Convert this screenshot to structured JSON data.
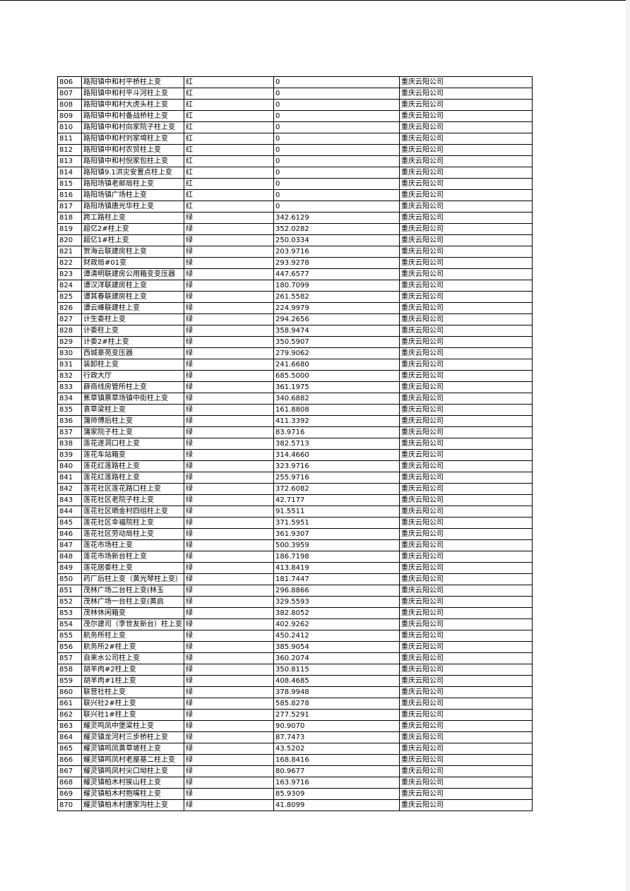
{
  "table": {
    "rows": [
      [
        "806",
        "路阳镇中和村平桥柱上变",
        "红",
        "0",
        "重庆云阳公司"
      ],
      [
        "807",
        "路阳镇中和村平斗河柱上变",
        "红",
        "0",
        "重庆云阳公司"
      ],
      [
        "808",
        "路阳镇中和村大虎头柱上变",
        "红",
        "0",
        "重庆云阳公司"
      ],
      [
        "809",
        "路阳镇中和村备战桥柱上变",
        "红",
        "0",
        "重庆云阳公司"
      ],
      [
        "810",
        "路阳镇中和村向家院子柱上变",
        "红",
        "0",
        "重庆云阳公司"
      ],
      [
        "811",
        "路阳镇中和村刘家塆柱上变",
        "红",
        "0",
        "重庆云阳公司"
      ],
      [
        "812",
        "路阳镇中和村农贸柱上变",
        "红",
        "0",
        "重庆云阳公司"
      ],
      [
        "813",
        "路阳镇中和村倪家包柱上变",
        "红",
        "0",
        "重庆云阳公司"
      ],
      [
        "814",
        "路阳镇9.1洪灾安置点柱上变",
        "红",
        "0",
        "重庆云阳公司"
      ],
      [
        "815",
        "路阳场镇老邮局柱上变",
        "红",
        "0",
        "重庆云阳公司"
      ],
      [
        "816",
        "路阳场镇广场柱上变",
        "红",
        "0",
        "重庆云阳公司"
      ],
      [
        "817",
        "路阳场镇唐光华柱上变",
        "红",
        "0",
        "重庆云阳公司"
      ],
      [
        "818",
        "跨工路柱上变",
        "绿",
        "342.6129",
        "重庆云阳公司"
      ],
      [
        "819",
        "超亿2#柱上变",
        "绿",
        "352.0282",
        "重庆云阳公司"
      ],
      [
        "820",
        "超亿1#柱上变",
        "绿",
        "250.0334",
        "重庆云阳公司"
      ],
      [
        "821",
        "贺海云联建房柱上变",
        "绿",
        "203.9716",
        "重庆云阳公司"
      ],
      [
        "822",
        "财政局#01变",
        "绿",
        "293.9278",
        "重庆云阳公司"
      ],
      [
        "823",
        "谭清明联建房公用箱变变压器",
        "绿",
        "447.6577",
        "重庆云阳公司"
      ],
      [
        "824",
        "谭汉洋联建房柱上变",
        "绿",
        "180.7099",
        "重庆云阳公司"
      ],
      [
        "825",
        "谭其春联建房柱上变",
        "绿",
        "261.5582",
        "重庆云阳公司"
      ],
      [
        "826",
        "谭云峰联建柱上变",
        "绿",
        "224.9979",
        "重庆云阳公司"
      ],
      [
        "827",
        "计生委柱上变",
        "绿",
        "294.2656",
        "重庆云阳公司"
      ],
      [
        "828",
        "计委柱上变",
        "绿",
        "358.9474",
        "重庆云阳公司"
      ],
      [
        "829",
        "计委2#柱上变",
        "绿",
        "350.5907",
        "重庆云阳公司"
      ],
      [
        "830",
        "西城豪苑变压器",
        "绿",
        "279.9062",
        "重庆云阳公司"
      ],
      [
        "831",
        "装卸柱上变",
        "绿",
        "241.6680",
        "重庆云阳公司"
      ],
      [
        "832",
        "行政大厅",
        "绿",
        "685.5000",
        "重庆云阳公司"
      ],
      [
        "833",
        "薛商线房管所柱上变",
        "绿",
        "361.1975",
        "重庆云阳公司"
      ],
      [
        "834",
        "蕉草镇票草场镇中街柱上变",
        "绿",
        "340.6882",
        "重庆云阳公司"
      ],
      [
        "835",
        "袁草梁柱上变",
        "绿",
        "161.8808",
        "重庆云阳公司"
      ],
      [
        "836",
        "蒲师傅后柱上变",
        "绿",
        "411.3392",
        "重庆云阳公司"
      ],
      [
        "837",
        "蒲家院子柱上变",
        "绿",
        "83.9716",
        "重庆云阳公司"
      ],
      [
        "838",
        "莲花遂洞口柱上变",
        "绿",
        "382.5713",
        "重庆云阳公司"
      ],
      [
        "839",
        "莲花车站箱变",
        "绿",
        "314.4660",
        "重庆云阳公司"
      ],
      [
        "840",
        "莲花红莲路柱上变",
        "绿",
        "323.9716",
        "重庆云阳公司"
      ],
      [
        "841",
        "莲花红莲路柱上变",
        "绿",
        "255.9716",
        "重庆云阳公司"
      ],
      [
        "842",
        "莲花社区莲花路口柱上变",
        "绿",
        "372.6082",
        "重庆云阳公司"
      ],
      [
        "843",
        "莲花社区老院子柱上变",
        "绿",
        "42.7177",
        "重庆云阳公司"
      ],
      [
        "844",
        "莲花社区晒金村四组柱上变",
        "绿",
        "91.5511",
        "重庆云阳公司"
      ],
      [
        "845",
        "莲花社区幸福院柱上变",
        "绿",
        "371.5951",
        "重庆云阳公司"
      ],
      [
        "846",
        "莲花社区劳动局柱上变",
        "绿",
        "361.9307",
        "重庆云阳公司"
      ],
      [
        "847",
        "莲花市场柱上变",
        "绿",
        "500.3959",
        "重庆云阳公司"
      ],
      [
        "848",
        "莲花市场新台柱上变",
        "绿",
        "186.7198",
        "重庆云阳公司"
      ],
      [
        "849",
        "莲花居委柱上变",
        "绿",
        "413.8419",
        "重庆云阳公司"
      ],
      [
        "850",
        "药厂后柱上变（黄光琴柱上变）",
        "绿",
        "181.7447",
        "重庆云阳公司"
      ],
      [
        "851",
        "茂林广场二台柱上变(林玉",
        "绿",
        "296.8866",
        "重庆云阳公司"
      ],
      [
        "852",
        "茂林广场一台柱上变(黄启",
        "绿",
        "329.5593",
        "重庆云阳公司"
      ],
      [
        "853",
        "茂林休闲箱变",
        "绿",
        "382.8052",
        "重庆云阳公司"
      ],
      [
        "854",
        "茂尔建司（李世友新台）柱上变",
        "绿",
        "402.9262",
        "重庆云阳公司"
      ],
      [
        "855",
        "航务所柱上变",
        "绿",
        "450.2412",
        "重庆云阳公司"
      ],
      [
        "856",
        "航务所2#柱上变",
        "绿",
        "385.9054",
        "重庆云阳公司"
      ],
      [
        "857",
        "自来水公司柱上变",
        "绿",
        "360.2074",
        "重庆云阳公司"
      ],
      [
        "858",
        "胡羊肉#2柱上变",
        "绿",
        "350.8115",
        "重庆云阳公司"
      ],
      [
        "859",
        "胡羊肉#1柱上变",
        "绿",
        "408.4685",
        "重庆云阳公司"
      ],
      [
        "860",
        "联营社柱上变",
        "绿",
        "378.9948",
        "重庆云阳公司"
      ],
      [
        "861",
        "联兴社2#柱上变",
        "绿",
        "585.8278",
        "重庆云阳公司"
      ],
      [
        "862",
        "联兴社1#柱上变",
        "绿",
        "277.5291",
        "重庆云阳公司"
      ],
      [
        "863",
        "耀灵鸣凤中堡梁柱上变",
        "绿",
        "90.9070",
        "重庆云阳公司"
      ],
      [
        "864",
        "耀灵镇龙河村三步桥柱上变",
        "绿",
        "87.7473",
        "重庆云阳公司"
      ],
      [
        "865",
        "耀灵镇鸣凤黄草坡柱上变",
        "绿",
        "43.5202",
        "重庆云阳公司"
      ],
      [
        "866",
        "耀灵镇鸣凤村老屋基二柱上变",
        "绿",
        "168.8416",
        "重庆云阳公司"
      ],
      [
        "867",
        "耀灵镇鸣凤村尖口坳柱上变",
        "绿",
        "80.9677",
        "重庆云阳公司"
      ],
      [
        "868",
        "耀灵镇柏木村挨山柱上变",
        "绿",
        "163.9716",
        "重庆云阳公司"
      ],
      [
        "869",
        "耀灵镇柏木村抱嘴柱上变",
        "绿",
        "85.9309",
        "重庆云阳公司"
      ],
      [
        "870",
        "耀灵镇柏木村唐家沟柱上变",
        "绿",
        "41.8099",
        "重庆云阳公司"
      ]
    ]
  }
}
